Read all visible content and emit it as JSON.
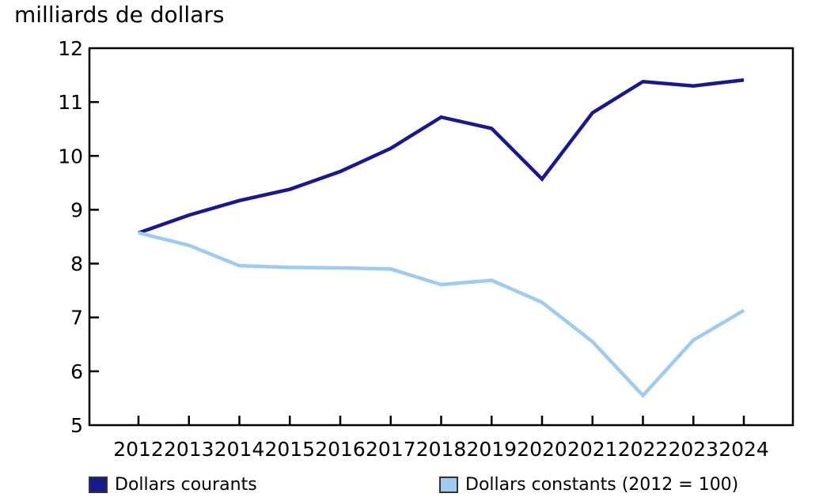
{
  "title": "milliards de dollars",
  "colors": {
    "series_courants": "#181890",
    "series_constants": "#9DCBF2",
    "axis": "#000000",
    "text": "#000000"
  },
  "legend": [
    {
      "label": "Dollars courants",
      "color": "#181890"
    },
    {
      "label": "Dollars constants (2012 = 100)",
      "color": "#9DCBF2"
    }
  ],
  "chart_data": {
    "type": "line",
    "title": "milliards de dollars",
    "xlabel": "",
    "ylabel": "milliards de dollars",
    "x": [
      "2012",
      "2013",
      "2014",
      "2015",
      "2016",
      "2017",
      "2018",
      "2019",
      "2020",
      "2021",
      "2022",
      "2023",
      "2024"
    ],
    "ylim": [
      5,
      12
    ],
    "yticks": [
      5,
      6,
      7,
      8,
      9,
      10,
      11,
      12
    ],
    "grid": false,
    "legend_position": "bottom",
    "series": [
      {
        "name": "Dollars courants",
        "color": "#181890",
        "values": [
          8.57,
          8.9,
          9.17,
          9.38,
          9.71,
          10.14,
          10.72,
          10.51,
          9.57,
          10.8,
          11.38,
          11.3,
          11.41
        ]
      },
      {
        "name": "Dollars constants (2012 = 100)",
        "color": "#9DCBF2",
        "values": [
          8.57,
          8.34,
          7.96,
          7.93,
          7.92,
          7.9,
          7.61,
          7.69,
          7.28,
          6.55,
          5.55,
          6.58,
          7.13
        ]
      }
    ]
  }
}
